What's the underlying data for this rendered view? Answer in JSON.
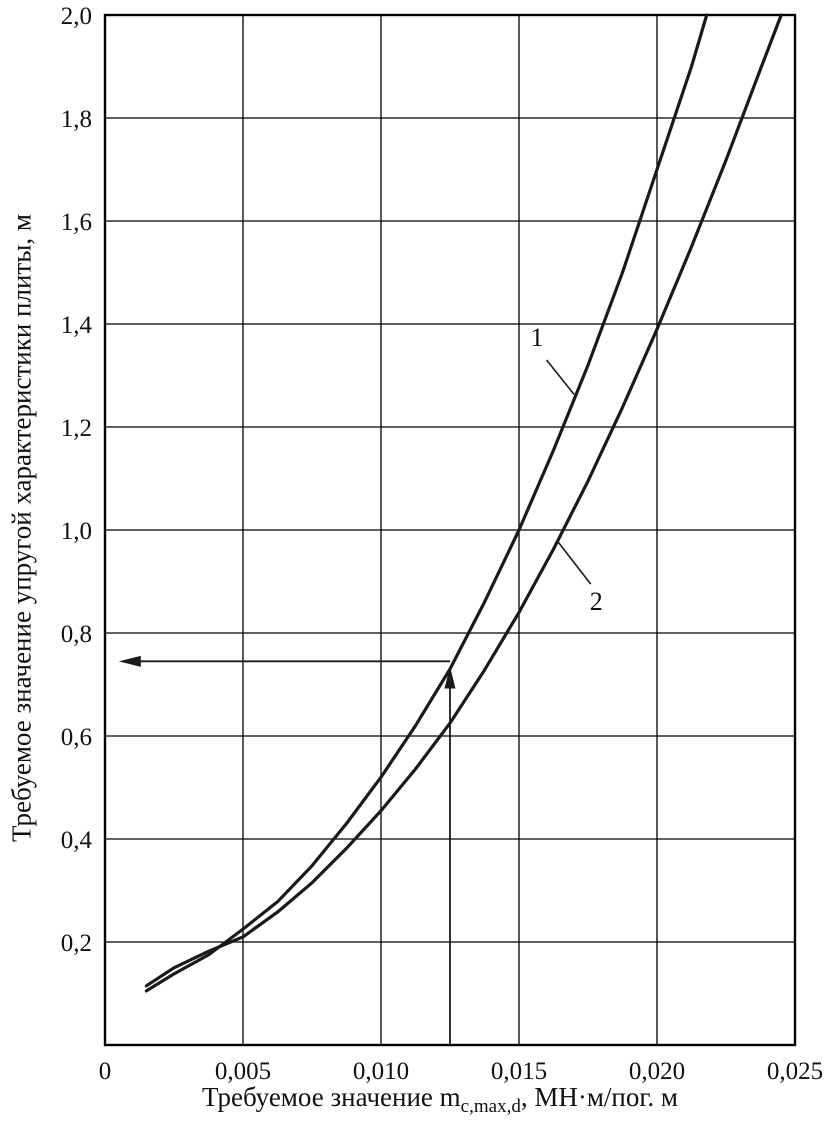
{
  "chart_data": {
    "type": "line",
    "title": "",
    "ylabel": "Требуемое значение упругой характеристики плиты, м",
    "xlabel_prefix": "Требуемое значение m",
    "xlabel_sub": "c,max,d",
    "xlabel_suffix": ", МН·м/пог. м",
    "xlim": [
      0,
      0.025
    ],
    "ylim": [
      0,
      2.0
    ],
    "grid": true,
    "legend": "none",
    "line_color": "#1a1a1a",
    "grid_color": "#000000",
    "x_ticks": [
      {
        "v": 0,
        "label": "0"
      },
      {
        "v": 0.005,
        "label": "0,005"
      },
      {
        "v": 0.01,
        "label": "0,010"
      },
      {
        "v": 0.015,
        "label": "0,015"
      },
      {
        "v": 0.02,
        "label": "0,020"
      },
      {
        "v": 0.025,
        "label": "0,025"
      }
    ],
    "y_ticks": [
      {
        "v": 0.2,
        "label": "0,2"
      },
      {
        "v": 0.4,
        "label": "0,4"
      },
      {
        "v": 0.6,
        "label": "0,6"
      },
      {
        "v": 0.8,
        "label": "0,8"
      },
      {
        "v": 1.0,
        "label": "1,0"
      },
      {
        "v": 1.2,
        "label": "1,2"
      },
      {
        "v": 1.4,
        "label": "1,4"
      },
      {
        "v": 1.6,
        "label": "1,6"
      },
      {
        "v": 1.8,
        "label": "1,8"
      },
      {
        "v": 2.0,
        "label": "2,0"
      }
    ],
    "series": [
      {
        "name": "1",
        "points": [
          [
            0.0015,
            0.105
          ],
          [
            0.0025,
            0.138
          ],
          [
            0.00375,
            0.175
          ],
          [
            0.005,
            0.225
          ],
          [
            0.00625,
            0.278
          ],
          [
            0.0075,
            0.348
          ],
          [
            0.00875,
            0.43
          ],
          [
            0.01,
            0.52
          ],
          [
            0.01125,
            0.62
          ],
          [
            0.0125,
            0.73
          ],
          [
            0.01375,
            0.86
          ],
          [
            0.015,
            1.0
          ],
          [
            0.01625,
            1.155
          ],
          [
            0.0175,
            1.32
          ],
          [
            0.01875,
            1.5
          ],
          [
            0.02,
            1.7
          ],
          [
            0.02125,
            1.9
          ],
          [
            0.0218,
            2.0
          ]
        ]
      },
      {
        "name": "2",
        "points": [
          [
            0.0015,
            0.115
          ],
          [
            0.0025,
            0.15
          ],
          [
            0.00375,
            0.182
          ],
          [
            0.005,
            0.21
          ],
          [
            0.00625,
            0.258
          ],
          [
            0.0075,
            0.315
          ],
          [
            0.00875,
            0.382
          ],
          [
            0.01,
            0.455
          ],
          [
            0.01125,
            0.536
          ],
          [
            0.0125,
            0.625
          ],
          [
            0.01375,
            0.728
          ],
          [
            0.015,
            0.84
          ],
          [
            0.01625,
            0.963
          ],
          [
            0.0175,
            1.095
          ],
          [
            0.01875,
            1.238
          ],
          [
            0.02,
            1.39
          ],
          [
            0.02125,
            1.55
          ],
          [
            0.0225,
            1.718
          ],
          [
            0.02375,
            1.895
          ],
          [
            0.0245,
            2.0
          ]
        ]
      }
    ],
    "callouts": [
      {
        "label": "1",
        "text_x": 0.01565,
        "text_y": 1.375,
        "line": [
          [
            0.016,
            1.33
          ],
          [
            0.017,
            1.263
          ]
        ]
      },
      {
        "label": "2",
        "text_x": 0.0178,
        "text_y": 0.862,
        "line": [
          [
            0.0176,
            0.895
          ],
          [
            0.0164,
            0.978
          ]
        ]
      }
    ],
    "readoff_arrows": [
      {
        "type": "horizontal-left",
        "y": 0.745,
        "x_from": 0.0125,
        "x_to": 0.0005
      },
      {
        "type": "vertical-up",
        "x": 0.0125,
        "y_from": 0,
        "y_to": 0.735
      }
    ]
  }
}
